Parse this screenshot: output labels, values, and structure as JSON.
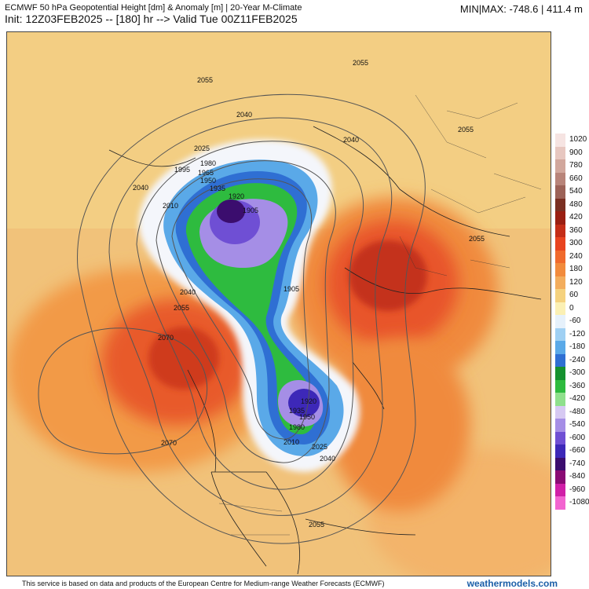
{
  "header": {
    "title": "ECMWF 50 hPa Geopotential Height [dm] & Anomaly [m] | 20-Year M-Climate",
    "init": "Init: 12Z03FEB2025 -- [180] hr --> Valid Tue 00Z11FEB2025",
    "minmax": "MIN|MAX: -748.6 | 411.4 m"
  },
  "map": {
    "contour_labels": [
      "2055",
      "2055",
      "2040",
      "2040",
      "2025",
      "1995",
      "1980",
      "1965",
      "1950",
      "1935",
      "1920",
      "1905",
      "2040",
      "2010",
      "1905",
      "2040",
      "2055",
      "2070",
      "2070",
      "2055",
      "1920",
      "1935",
      "1950",
      "1980",
      "2010",
      "2025",
      "2040",
      "2055",
      "2055"
    ],
    "colors": {
      "background": "#f0c878",
      "warm": "#e8642a",
      "hot": "#c0391b",
      "cold_green": "#2db24a",
      "cold_blue": "#2c63d8",
      "cold_purple": "#7b4bd6",
      "core": "#5a1a7a"
    }
  },
  "colorbar": [
    {
      "label": "1020",
      "color": "#f6e4e2"
    },
    {
      "label": "900",
      "color": "#e7c7c0"
    },
    {
      "label": "780",
      "color": "#d1a79c"
    },
    {
      "label": "660",
      "color": "#b88479"
    },
    {
      "label": "540",
      "color": "#9c6257"
    },
    {
      "label": "480",
      "color": "#7a2f22"
    },
    {
      "label": "420",
      "color": "#9a1f12"
    },
    {
      "label": "360",
      "color": "#c42d17"
    },
    {
      "label": "300",
      "color": "#e8431f"
    },
    {
      "label": "240",
      "color": "#f06a2c"
    },
    {
      "label": "180",
      "color": "#f28b3c"
    },
    {
      "label": "120",
      "color": "#f3ad5c"
    },
    {
      "label": "60",
      "color": "#f5d27e"
    },
    {
      "label": "0",
      "color": "#fbf0b4"
    },
    {
      "label": "-60",
      "color": "#e6f1fb"
    },
    {
      "label": "-120",
      "color": "#9fd0f3"
    },
    {
      "label": "-180",
      "color": "#5aa9e8"
    },
    {
      "label": "-240",
      "color": "#2f6fd3"
    },
    {
      "label": "-300",
      "color": "#15912f"
    },
    {
      "label": "-360",
      "color": "#2ebb3f"
    },
    {
      "label": "-420",
      "color": "#8fe08c"
    },
    {
      "label": "-480",
      "color": "#d6c9f2"
    },
    {
      "label": "-540",
      "color": "#a58ee6"
    },
    {
      "label": "-600",
      "color": "#6f4fd4"
    },
    {
      "label": "-660",
      "color": "#3d28b8"
    },
    {
      "label": "-740",
      "color": "#3b0d6e"
    },
    {
      "label": "-840",
      "color": "#8a0b74"
    },
    {
      "label": "-960",
      "color": "#d01fa7"
    },
    {
      "label": "-1080",
      "color": "#f264d0"
    }
  ],
  "footer": {
    "text": "This service is based on data and products of the European Centre for Medium-range Weather Forecasts (ECMWF)",
    "brand": "weathermodels.com"
  }
}
